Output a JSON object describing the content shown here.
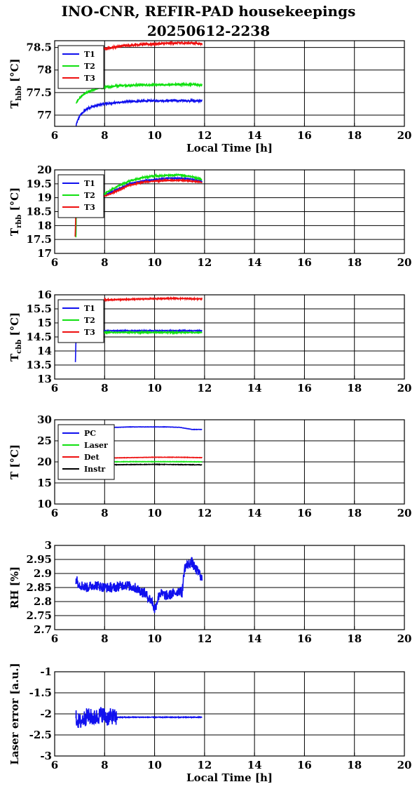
{
  "page": {
    "title_line1": "INO-CNR, REFIR-PAD housekeepings",
    "title_line2": "20250612-2238"
  },
  "colors": {
    "blue": "#1010ee",
    "green": "#10e010",
    "red": "#ee1010",
    "black": "#000000"
  },
  "chart_data": [
    {
      "type": "line",
      "ylabel_main": "T",
      "ylabel_sub": "hbb",
      "ylabel_unit": "[°C]",
      "xlabel": "Local Time [h]",
      "xlim": [
        6,
        20
      ],
      "ylim": [
        76.75,
        78.65
      ],
      "x_ticks": [
        6,
        8,
        10,
        12,
        14,
        16,
        18,
        20
      ],
      "y_ticks": [
        77,
        77.5,
        78,
        78.5
      ],
      "y_tick_labels": [
        "77",
        "77.5",
        "78",
        "78.5"
      ],
      "grid": true,
      "legend_position": "top-left",
      "series": [
        {
          "name": "T1",
          "color": "blue",
          "noise": 0.02,
          "x": [
            6.85,
            6.9,
            7.0,
            7.2,
            7.4,
            7.6,
            7.8,
            8.0,
            8.5,
            9.0,
            9.5,
            10.0,
            10.5,
            11.0,
            11.5,
            11.9
          ],
          "values": [
            76.75,
            76.85,
            76.98,
            77.1,
            77.17,
            77.2,
            77.23,
            77.25,
            77.28,
            77.3,
            77.31,
            77.32,
            77.32,
            77.32,
            77.32,
            77.31
          ]
        },
        {
          "name": "T2",
          "color": "green",
          "noise": 0.02,
          "x": [
            6.85,
            7.0,
            7.2,
            7.4,
            7.6,
            7.8,
            8.0,
            8.5,
            9.0,
            9.5,
            10.0,
            10.5,
            11.0,
            11.5,
            11.9
          ],
          "values": [
            77.27,
            77.38,
            77.47,
            77.53,
            77.57,
            77.6,
            77.62,
            77.65,
            77.66,
            77.67,
            77.67,
            77.67,
            77.68,
            77.68,
            77.66
          ]
        },
        {
          "name": "T3",
          "color": "red",
          "noise": 0.025,
          "x": [
            7.9,
            8.0,
            8.5,
            9.0,
            9.5,
            10.0,
            10.5,
            11.0,
            11.5,
            11.9
          ],
          "values": [
            78.45,
            78.47,
            78.52,
            78.55,
            78.57,
            78.58,
            78.59,
            78.6,
            78.6,
            78.58
          ]
        }
      ]
    },
    {
      "type": "line",
      "ylabel_main": "T",
      "ylabel_sub": "rbb",
      "ylabel_unit": "[°C]",
      "xlabel": "",
      "xlim": [
        6,
        20
      ],
      "ylim": [
        17,
        20
      ],
      "x_ticks": [
        6,
        8,
        10,
        12,
        14,
        16,
        18,
        20
      ],
      "y_ticks": [
        17,
        17.5,
        18,
        18.5,
        19,
        19.5,
        20
      ],
      "y_tick_labels": [
        "17",
        "17.5",
        "18",
        "18.5",
        "19",
        "19.5",
        "20"
      ],
      "grid": true,
      "legend_position": "top-left",
      "series": [
        {
          "name": "T1",
          "color": "blue",
          "noise": 0.02,
          "x": [
            6.85,
            6.87,
            7.0,
            7.5,
            8.0,
            8.5,
            9.0,
            9.5,
            10.0,
            10.5,
            11.0,
            11.5,
            11.9
          ],
          "values": [
            17.65,
            18.8,
            18.85,
            18.95,
            19.1,
            19.3,
            19.5,
            19.6,
            19.65,
            19.7,
            19.7,
            19.66,
            19.58
          ]
        },
        {
          "name": "T2",
          "color": "green",
          "noise": 0.025,
          "x": [
            6.85,
            6.87,
            7.0,
            7.5,
            8.0,
            8.5,
            9.0,
            9.5,
            10.0,
            10.5,
            11.0,
            11.5,
            11.9
          ],
          "values": [
            17.6,
            18.75,
            18.82,
            18.95,
            19.15,
            19.4,
            19.6,
            19.72,
            19.78,
            19.8,
            19.82,
            19.75,
            19.65
          ]
        },
        {
          "name": "T3",
          "color": "red",
          "noise": 0.02,
          "x": [
            6.82,
            6.84,
            6.87,
            7.0,
            7.5,
            8.0,
            8.5,
            9.0,
            9.5,
            10.0,
            10.5,
            11.0,
            11.5,
            11.9
          ],
          "values": [
            17.6,
            18.3,
            18.85,
            18.85,
            18.95,
            19.05,
            19.25,
            19.45,
            19.55,
            19.6,
            19.62,
            19.63,
            19.6,
            19.55
          ]
        }
      ]
    },
    {
      "type": "line",
      "ylabel_main": "T",
      "ylabel_sub": "cbb",
      "ylabel_unit": "[°C]",
      "xlabel": "",
      "xlim": [
        6,
        20
      ],
      "ylim": [
        13,
        16
      ],
      "x_ticks": [
        6,
        8,
        10,
        12,
        14,
        16,
        18,
        20
      ],
      "y_ticks": [
        13,
        13.5,
        14,
        14.5,
        15,
        15.5,
        16
      ],
      "y_tick_labels": [
        "13",
        "13.5",
        "14",
        "14.5",
        "15",
        "15.5",
        "16"
      ],
      "grid": true,
      "legend_position": "top-left",
      "series": [
        {
          "name": "T1",
          "color": "blue",
          "noise": 0.015,
          "x": [
            6.83,
            6.85,
            6.87,
            6.9,
            7.0,
            7.5,
            8.0,
            9.0,
            10.0,
            11.0,
            11.9
          ],
          "values": [
            13.6,
            14.3,
            14.65,
            14.7,
            14.72,
            14.72,
            14.72,
            14.72,
            14.72,
            14.72,
            14.72
          ]
        },
        {
          "name": "T2",
          "color": "green",
          "noise": 0.018,
          "x": [
            6.9,
            7.0,
            8.0,
            9.0,
            10.0,
            11.0,
            11.9
          ],
          "values": [
            14.62,
            14.65,
            14.66,
            14.66,
            14.66,
            14.66,
            14.66
          ]
        },
        {
          "name": "T3",
          "color": "red",
          "noise": 0.018,
          "x": [
            7.9,
            8.0,
            9.0,
            10.0,
            10.5,
            11.0,
            11.5,
            11.9
          ],
          "values": [
            15.8,
            15.82,
            15.84,
            15.86,
            15.87,
            15.87,
            15.86,
            15.85
          ]
        }
      ]
    },
    {
      "type": "line",
      "ylabel_main": "T [°C]",
      "ylabel_sub": "",
      "ylabel_unit": "",
      "xlabel": "",
      "xlim": [
        6,
        20
      ],
      "ylim": [
        10,
        30
      ],
      "x_ticks": [
        6,
        8,
        10,
        12,
        14,
        16,
        18,
        20
      ],
      "y_ticks": [
        10,
        15,
        20,
        25,
        30
      ],
      "y_tick_labels": [
        "10",
        "15",
        "20",
        "25",
        "30"
      ],
      "grid": true,
      "legend_position": "top-left",
      "series": [
        {
          "name": "PC",
          "color": "blue",
          "noise": 0.03,
          "x": [
            8.0,
            8.5,
            9.0,
            9.5,
            10.0,
            10.5,
            11.0,
            11.3,
            11.5,
            11.9
          ],
          "values": [
            28.2,
            28.2,
            28.3,
            28.3,
            28.3,
            28.3,
            28.2,
            27.9,
            27.7,
            27.7
          ]
        },
        {
          "name": "Laser",
          "color": "green",
          "noise": 0.04,
          "x": [
            7.8,
            8.0,
            9.0,
            10.0,
            11.0,
            11.9
          ],
          "values": [
            19.9,
            20.0,
            20.05,
            20.05,
            20.05,
            20.0
          ]
        },
        {
          "name": "Det",
          "color": "red",
          "noise": 0.04,
          "x": [
            8.0,
            9.0,
            10.0,
            11.0,
            11.9
          ],
          "values": [
            20.9,
            21.0,
            21.1,
            21.1,
            21.0
          ]
        },
        {
          "name": "Instr",
          "color": "black",
          "noise": 0.05,
          "x": [
            7.8,
            8.0,
            9.0,
            10.0,
            11.0,
            11.9
          ],
          "values": [
            19.2,
            19.3,
            19.35,
            19.4,
            19.35,
            19.3
          ]
        }
      ]
    },
    {
      "type": "line",
      "ylabel_main": "RH [%]",
      "ylabel_sub": "",
      "ylabel_unit": "",
      "xlabel": "",
      "xlim": [
        6,
        20
      ],
      "ylim": [
        2.7,
        3.0
      ],
      "x_ticks": [
        6,
        8,
        10,
        12,
        14,
        16,
        18,
        20
      ],
      "y_ticks": [
        2.7,
        2.75,
        2.8,
        2.85,
        2.9,
        2.95,
        3.0
      ],
      "y_tick_labels": [
        "2.7",
        "2.75",
        "2.8",
        "2.85",
        "2.9",
        "2.95",
        "3"
      ],
      "grid": true,
      "legend_position": "none",
      "series": [
        {
          "name": "",
          "color": "blue",
          "noise": 0.018,
          "x": [
            6.85,
            7.0,
            7.3,
            7.6,
            8.0,
            8.4,
            8.8,
            9.2,
            9.6,
            9.9,
            10.0,
            10.2,
            10.5,
            10.8,
            11.0,
            11.1,
            11.2,
            11.3,
            11.5,
            11.6,
            11.8,
            11.9
          ],
          "values": [
            2.88,
            2.86,
            2.85,
            2.86,
            2.85,
            2.85,
            2.86,
            2.85,
            2.83,
            2.8,
            2.77,
            2.83,
            2.82,
            2.83,
            2.84,
            2.83,
            2.92,
            2.93,
            2.94,
            2.92,
            2.9,
            2.88
          ]
        }
      ]
    },
    {
      "type": "line",
      "ylabel_main": "Laser error [a.u.]",
      "ylabel_sub": "",
      "ylabel_unit": "",
      "xlabel": "Local Time [h]",
      "xlim": [
        6,
        20
      ],
      "ylim": [
        -3,
        -1
      ],
      "x_ticks": [
        6,
        8,
        10,
        12,
        14,
        16,
        18,
        20
      ],
      "y_ticks": [
        -3,
        -2.5,
        -2,
        -1.5,
        -1
      ],
      "y_tick_labels": [
        "-3",
        "-2.5",
        "-2",
        "-1.5",
        "-1"
      ],
      "grid": true,
      "legend_position": "none",
      "series": [
        {
          "name": "",
          "color": "blue",
          "noise": 0.2,
          "x": [
            6.85,
            7.0,
            7.3,
            7.6,
            7.9,
            8.1,
            8.3,
            8.45,
            8.5,
            8.6,
            9.0,
            10.0,
            11.0,
            11.9
          ],
          "values": [
            -2.1,
            -2.2,
            -2.05,
            -2.1,
            -2.0,
            -2.1,
            -2.05,
            -2.1,
            -2.08,
            -2.08,
            -2.08,
            -2.08,
            -2.08,
            -2.08
          ],
          "noise_until": 8.5
        }
      ]
    }
  ]
}
